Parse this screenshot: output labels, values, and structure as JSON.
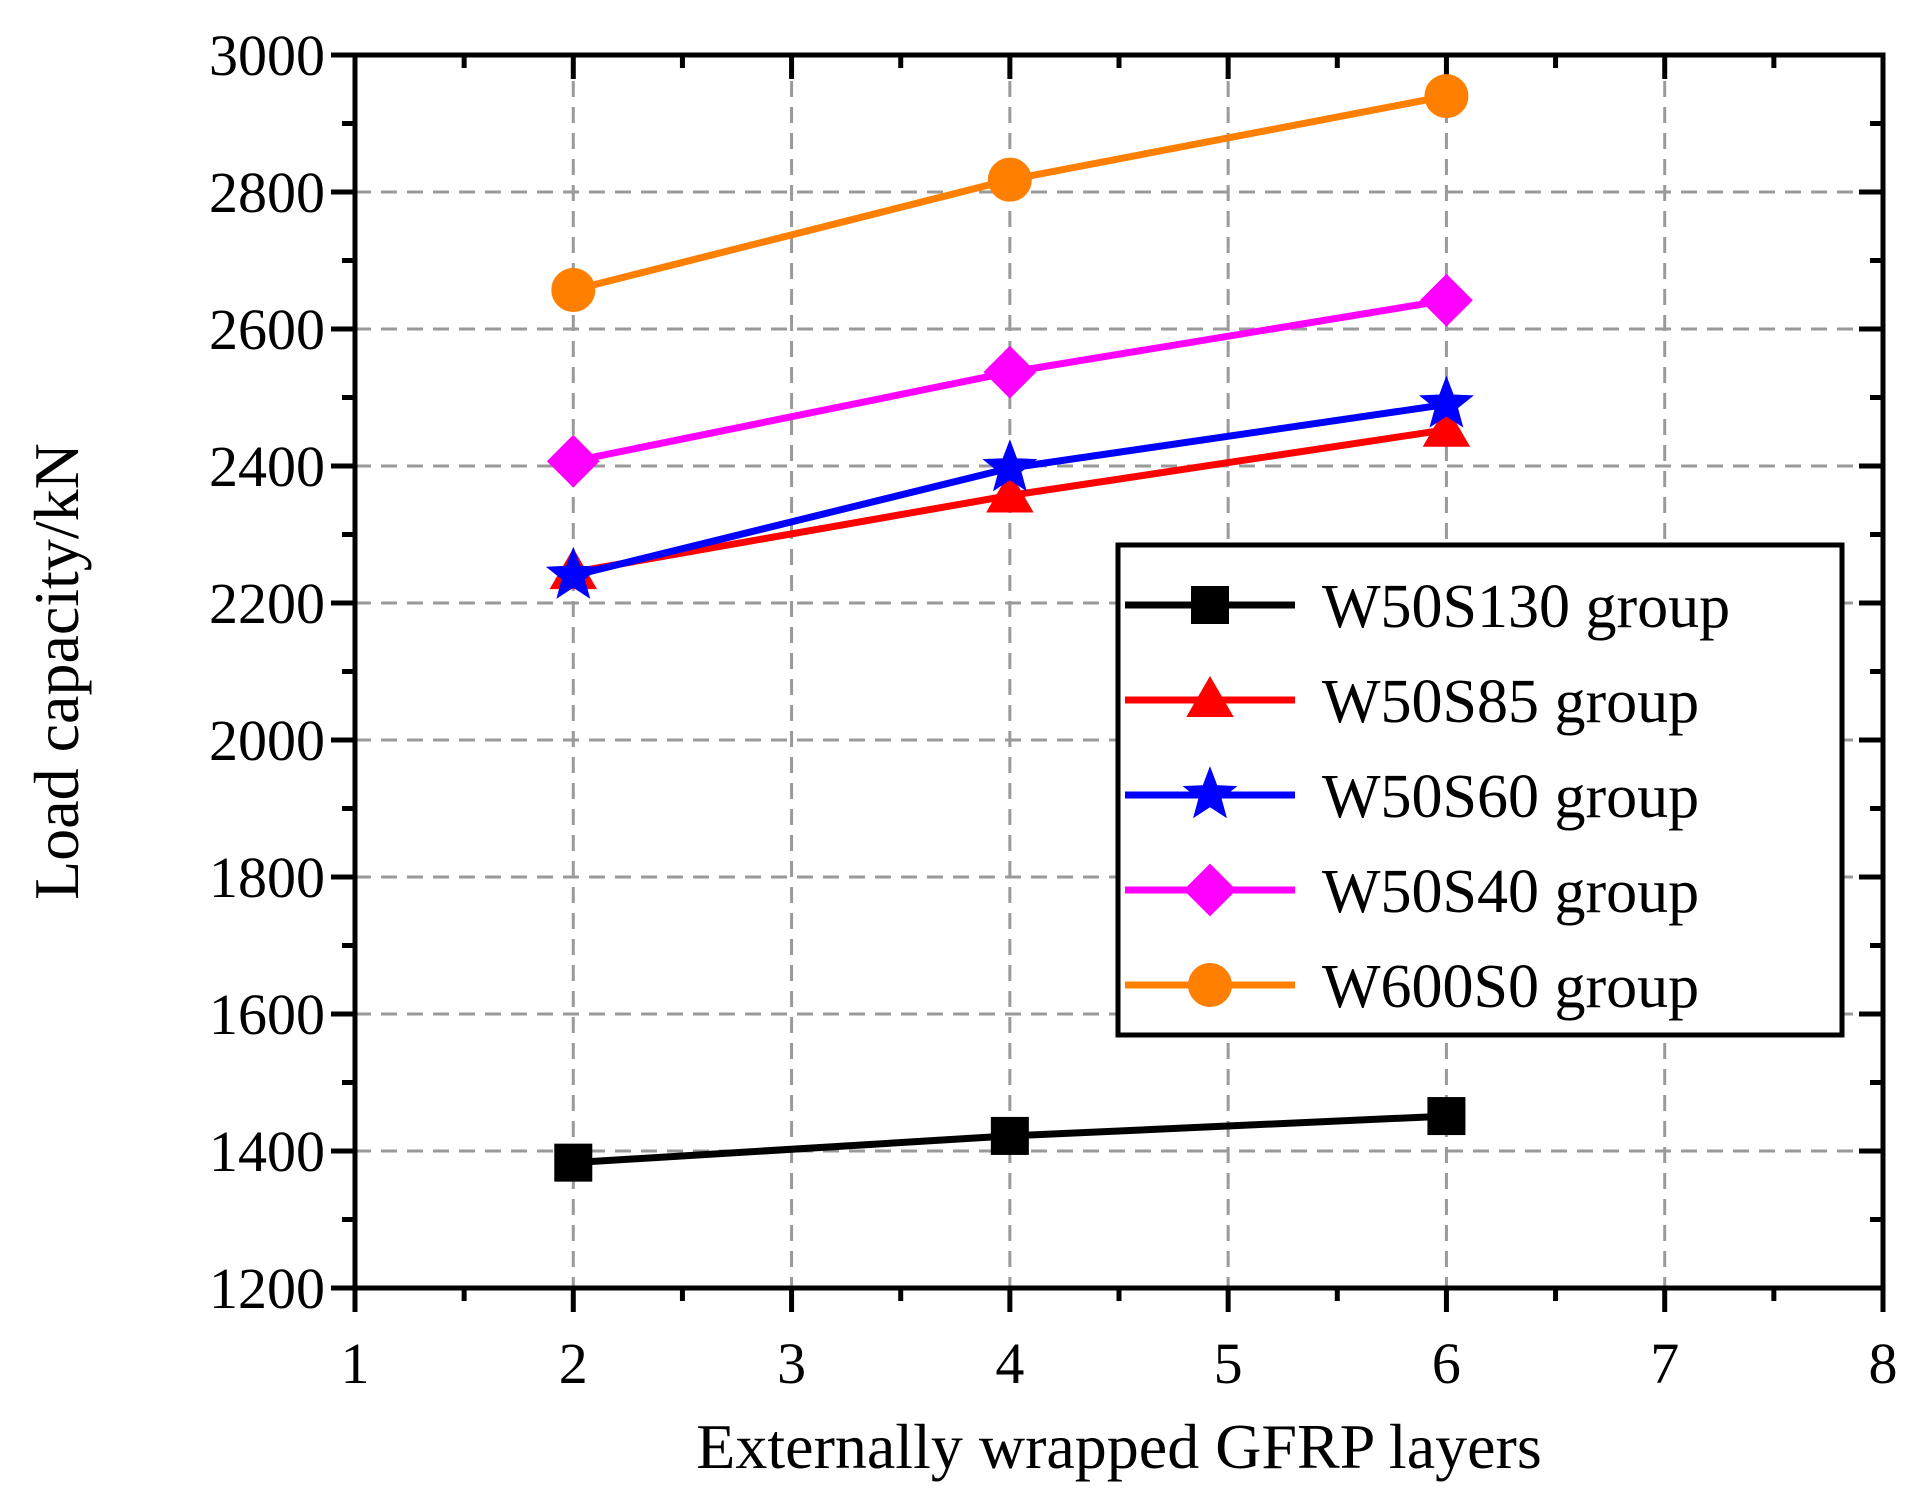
{
  "chart_data": {
    "type": "line",
    "title": "",
    "xlabel": "Externally wrapped GFRP layers",
    "ylabel": "Load capacity/kN",
    "xlim": [
      1,
      8
    ],
    "ylim": [
      1200,
      3000
    ],
    "xticks": [
      1,
      2,
      3,
      4,
      5,
      6,
      7,
      8
    ],
    "yticks": [
      1200,
      1400,
      1600,
      1800,
      2000,
      2200,
      2400,
      2600,
      2800,
      3000
    ],
    "xtick_labels": [
      "1",
      "2",
      "3",
      "4",
      "5",
      "6",
      "7",
      "8"
    ],
    "ytick_labels": [
      "1200",
      "1400",
      "1600",
      "1800",
      "2000",
      "2200",
      "2400",
      "2600",
      "2800",
      "3000"
    ],
    "grid": true,
    "legend_position": "right",
    "x": [
      2,
      4,
      6
    ],
    "series": [
      {
        "name": "W50S130 group",
        "marker": "square",
        "color": "#000000",
        "values": [
          1383,
          1422,
          1451
        ]
      },
      {
        "name": "W50S85 group",
        "marker": "triangle",
        "color": "#ff0000",
        "values": [
          2245,
          2357,
          2453
        ]
      },
      {
        "name": "W50S60 group",
        "marker": "star",
        "color": "#0000ff",
        "values": [
          2240,
          2397,
          2490
        ]
      },
      {
        "name": "W50S40 group",
        "marker": "diamond",
        "color": "#ff00ff",
        "values": [
          2407,
          2537,
          2642
        ]
      },
      {
        "name": "W600S0 group",
        "marker": "circle",
        "color": "#ff8000",
        "values": [
          2657,
          2818,
          2940
        ]
      }
    ]
  }
}
